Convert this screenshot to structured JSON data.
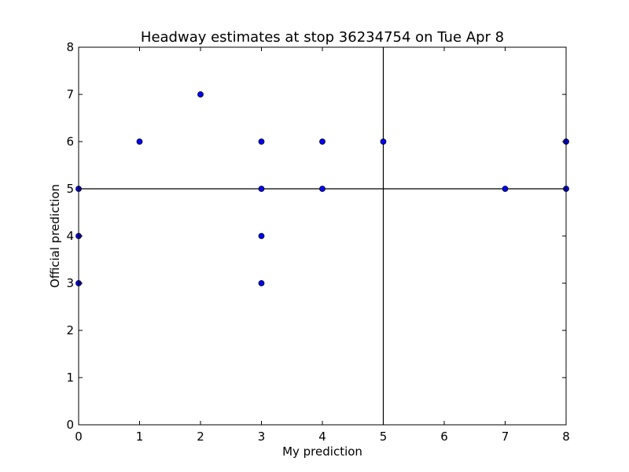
{
  "chart_data": {
    "type": "scatter",
    "title": "Headway estimates at stop 36234754 on Tue Apr 8",
    "xlabel": "My prediction",
    "ylabel": "Official prediction",
    "xlim": [
      0,
      8
    ],
    "ylim": [
      0,
      8
    ],
    "xticks": [
      0,
      1,
      2,
      3,
      4,
      5,
      6,
      7,
      8
    ],
    "yticks": [
      0,
      1,
      2,
      3,
      4,
      5,
      6,
      7,
      8
    ],
    "grid": false,
    "reference_lines": {
      "x": 5,
      "y": 5
    },
    "marker_color": "#0000ff",
    "marker_edge_color": "#000000",
    "series": [
      {
        "points": [
          {
            "x": 0,
            "y": 5
          },
          {
            "x": 0,
            "y": 4
          },
          {
            "x": 0,
            "y": 3
          },
          {
            "x": 1,
            "y": 6
          },
          {
            "x": 2,
            "y": 7
          },
          {
            "x": 3,
            "y": 6
          },
          {
            "x": 3,
            "y": 5
          },
          {
            "x": 3,
            "y": 4
          },
          {
            "x": 3,
            "y": 3
          },
          {
            "x": 4,
            "y": 6
          },
          {
            "x": 4,
            "y": 5
          },
          {
            "x": 5,
            "y": 6
          },
          {
            "x": 7,
            "y": 5
          },
          {
            "x": 8,
            "y": 6
          },
          {
            "x": 8,
            "y": 5
          }
        ]
      }
    ]
  }
}
